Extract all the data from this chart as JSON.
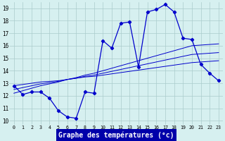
{
  "hours": [
    0,
    1,
    2,
    3,
    4,
    5,
    6,
    7,
    8,
    9,
    10,
    11,
    12,
    13,
    14,
    15,
    16,
    17,
    18,
    19,
    20,
    21,
    22,
    23
  ],
  "temp": [
    12.8,
    12.1,
    12.3,
    12.3,
    11.8,
    10.8,
    10.3,
    10.2,
    12.3,
    12.2,
    16.4,
    15.8,
    17.8,
    17.9,
    14.3,
    18.7,
    18.9,
    19.3,
    18.7,
    16.6,
    16.5,
    14.5,
    13.8,
    13.2
  ],
  "line1": [
    12.8,
    12.9,
    13.0,
    13.1,
    13.15,
    13.2,
    13.3,
    13.4,
    13.5,
    13.55,
    13.65,
    13.75,
    13.85,
    13.95,
    14.05,
    14.15,
    14.25,
    14.35,
    14.45,
    14.55,
    14.65,
    14.7,
    14.75,
    14.8
  ],
  "line2": [
    12.5,
    12.65,
    12.8,
    12.95,
    13.05,
    13.15,
    13.3,
    13.4,
    13.55,
    13.65,
    13.8,
    13.95,
    14.1,
    14.25,
    14.4,
    14.55,
    14.7,
    14.85,
    15.0,
    15.15,
    15.3,
    15.35,
    15.4,
    15.45
  ],
  "line3": [
    12.2,
    12.4,
    12.6,
    12.8,
    12.95,
    13.1,
    13.3,
    13.45,
    13.65,
    13.8,
    14.0,
    14.2,
    14.4,
    14.6,
    14.8,
    15.0,
    15.2,
    15.4,
    15.6,
    15.8,
    16.0,
    16.05,
    16.1,
    16.15
  ],
  "yticks": [
    10,
    11,
    12,
    13,
    14,
    15,
    16,
    17,
    18,
    19
  ],
  "bg_color": "#d6f0f0",
  "line_color": "#0000cc",
  "grid_color": "#aacccc",
  "xlabel": "Graphe des températures (°c)",
  "xlabel_bg": "#0000aa",
  "xlabel_fg": "#ffffff"
}
